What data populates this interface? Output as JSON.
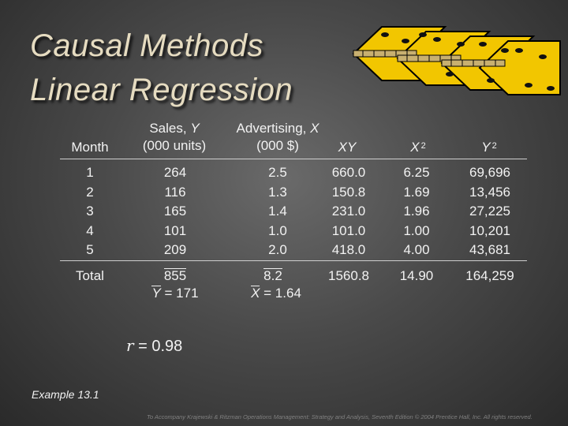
{
  "title": {
    "line1": "Causal Methods",
    "line2": "Linear Regression"
  },
  "headers": {
    "month": "Month",
    "sales_l1": "Sales, ",
    "sales_var": "Y",
    "sales_l2": "(000 units)",
    "adv_l1": "Advertising, ",
    "adv_var": "X",
    "adv_l2": "(000 $)",
    "xy": "XY",
    "x2": "X",
    "x2_sup": "2",
    "y2": "Y",
    "y2_sup": "2"
  },
  "rows": [
    {
      "month": "1",
      "y": "264",
      "x": "2.5",
      "xy": "660.0",
      "x2": "6.25",
      "y2": "69,696"
    },
    {
      "month": "2",
      "y": "116",
      "x": "1.3",
      "xy": "150.8",
      "x2": "1.69",
      "y2": "13,456"
    },
    {
      "month": "3",
      "y": "165",
      "x": "1.4",
      "xy": "231.0",
      "x2": "1.96",
      "y2": "27,225"
    },
    {
      "month": "4",
      "y": "101",
      "x": "1.0",
      "xy": "101.0",
      "x2": "1.00",
      "y2": "10,201"
    },
    {
      "month": "5",
      "y": "209",
      "x": "2.0",
      "xy": "418.0",
      "x2": "4.00",
      "y2": "43,681"
    }
  ],
  "totals": {
    "label": "Total",
    "y": "855",
    "x": "8.2",
    "xy": "1560.8",
    "x2": "14.90",
    "y2": "164,259",
    "ybar_sym": "Y",
    "ybar_val": " = 171",
    "xbar_sym": "X",
    "xbar_val": " = 1.64"
  },
  "r_line": {
    "symbol": "r",
    "value": " = 0.98"
  },
  "example": "Example 13.1",
  "footer": "To Accompany Krajewski & Ritzman Operations Management: Strategy and Analysis, Seventh Edition © 2004 Prentice Hall, Inc. All rights reserved.",
  "colors": {
    "title": "#e6dcc1",
    "text": "#f2f2f2",
    "footer": "#808080",
    "tile": "#f2c600",
    "hinge": "#c8b070"
  },
  "icons": [
    "tiles-hinges-graphic"
  ]
}
